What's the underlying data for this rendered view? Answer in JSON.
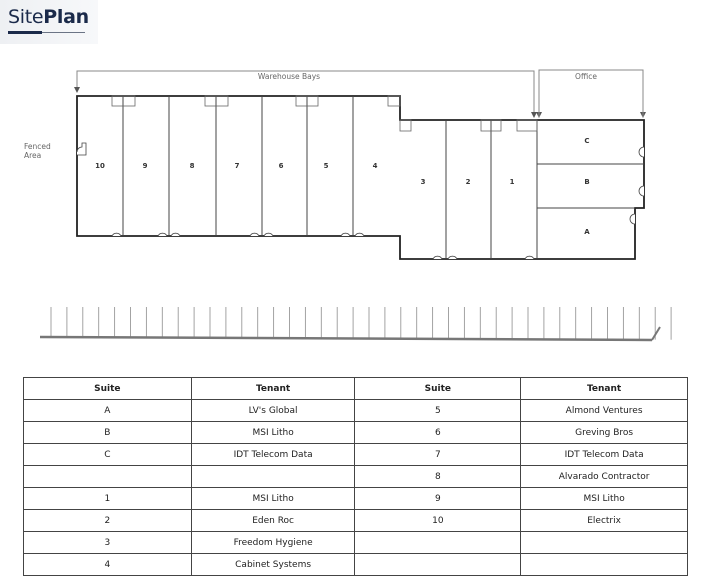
{
  "logo": {
    "light": "Site",
    "bold": "Plan"
  },
  "plan": {
    "warehouse_label": "Warehouse Bays",
    "office_label": "Office",
    "fenced_label_1": "Fenced",
    "fenced_label_2": "Area",
    "suites": [
      "10",
      "9",
      "8",
      "7",
      "6",
      "5",
      "4",
      "3",
      "2",
      "1",
      "C",
      "B",
      "A"
    ]
  },
  "table": {
    "headers": [
      "Suite",
      "Tenant",
      "Suite",
      "Tenant"
    ],
    "rows": [
      [
        "A",
        "LV's Global",
        "5",
        "Almond Ventures"
      ],
      [
        "B",
        "MSI Litho",
        "6",
        "Greving Bros"
      ],
      [
        "C",
        "IDT Telecom Data",
        "7",
        "IDT Telecom Data"
      ],
      [
        "",
        "",
        "8",
        "Alvarado Contractor"
      ],
      [
        "1",
        "MSI Litho",
        "9",
        "MSI Litho"
      ],
      [
        "2",
        "Eden Roc",
        "10",
        "Electrix"
      ],
      [
        "3",
        "Freedom Hygiene",
        "",
        ""
      ],
      [
        "4",
        "Cabinet Systems",
        "",
        ""
      ]
    ]
  },
  "colors": {
    "brand": "#1b2a4a",
    "lines": "#333333"
  }
}
